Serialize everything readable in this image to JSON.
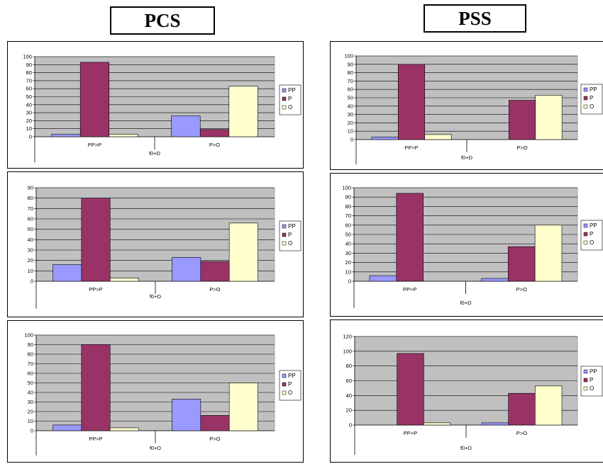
{
  "column_titles": [
    "PCS",
    "PSS"
  ],
  "colors": {
    "PP": "#9999ff",
    "P": "#993366",
    "O": "#ffffcc",
    "plot_bg": "#c0c0c0",
    "grid": "#000000"
  },
  "chart_data": [
    {
      "type": "bar",
      "group": "PCS",
      "categories": [
        "PP>P",
        "P>O"
      ],
      "xlabel": "f0+D",
      "ylim": [
        0,
        100
      ],
      "ytick_step": 10,
      "legend": "right",
      "series": [
        {
          "name": "PP",
          "values": [
            3,
            26
          ]
        },
        {
          "name": "P",
          "values": [
            93,
            9
          ]
        },
        {
          "name": "O",
          "values": [
            3,
            63
          ]
        }
      ]
    },
    {
      "type": "bar",
      "group": "PCS",
      "categories": [
        "PP>P",
        "P>O"
      ],
      "xlabel": "f0+D",
      "ylim": [
        0,
        90
      ],
      "ytick_step": 10,
      "legend": "right",
      "series": [
        {
          "name": "PP",
          "values": [
            16,
            23
          ]
        },
        {
          "name": "P",
          "values": [
            80,
            19
          ]
        },
        {
          "name": "O",
          "values": [
            3,
            56
          ]
        }
      ]
    },
    {
      "type": "bar",
      "group": "PCS",
      "categories": [
        "PP>P",
        "P>O"
      ],
      "xlabel": "f0+D",
      "ylim": [
        0,
        100
      ],
      "ytick_step": 10,
      "legend": "right",
      "series": [
        {
          "name": "PP",
          "values": [
            6,
            33
          ]
        },
        {
          "name": "P",
          "values": [
            90,
            16
          ]
        },
        {
          "name": "O",
          "values": [
            3,
            50
          ]
        }
      ]
    },
    {
      "type": "bar",
      "group": "PSS",
      "categories": [
        "PP>P",
        "P>O"
      ],
      "xlabel": "f0+D",
      "ylim": [
        0,
        100
      ],
      "ytick_step": 10,
      "legend": "right",
      "series": [
        {
          "name": "PP",
          "values": [
            3,
            0
          ]
        },
        {
          "name": "P",
          "values": [
            90,
            47
          ]
        },
        {
          "name": "O",
          "values": [
            6,
            53
          ]
        }
      ]
    },
    {
      "type": "bar",
      "group": "PSS",
      "categories": [
        "PP>P",
        "P>O"
      ],
      "xlabel": "f0+D",
      "ylim": [
        0,
        100
      ],
      "ytick_step": 10,
      "legend": "right",
      "series": [
        {
          "name": "PP",
          "values": [
            6,
            3
          ]
        },
        {
          "name": "P",
          "values": [
            94,
            37
          ]
        },
        {
          "name": "O",
          "values": [
            0,
            60
          ]
        }
      ]
    },
    {
      "type": "bar",
      "group": "PSS",
      "categories": [
        "PP>P",
        "P>O"
      ],
      "xlabel": "f0+D",
      "ylim": [
        0,
        120
      ],
      "ytick_step": 20,
      "legend": "right",
      "series": [
        {
          "name": "PP",
          "values": [
            0,
            3
          ]
        },
        {
          "name": "P",
          "values": [
            97,
            43
          ]
        },
        {
          "name": "O",
          "values": [
            3,
            53
          ]
        }
      ]
    }
  ]
}
